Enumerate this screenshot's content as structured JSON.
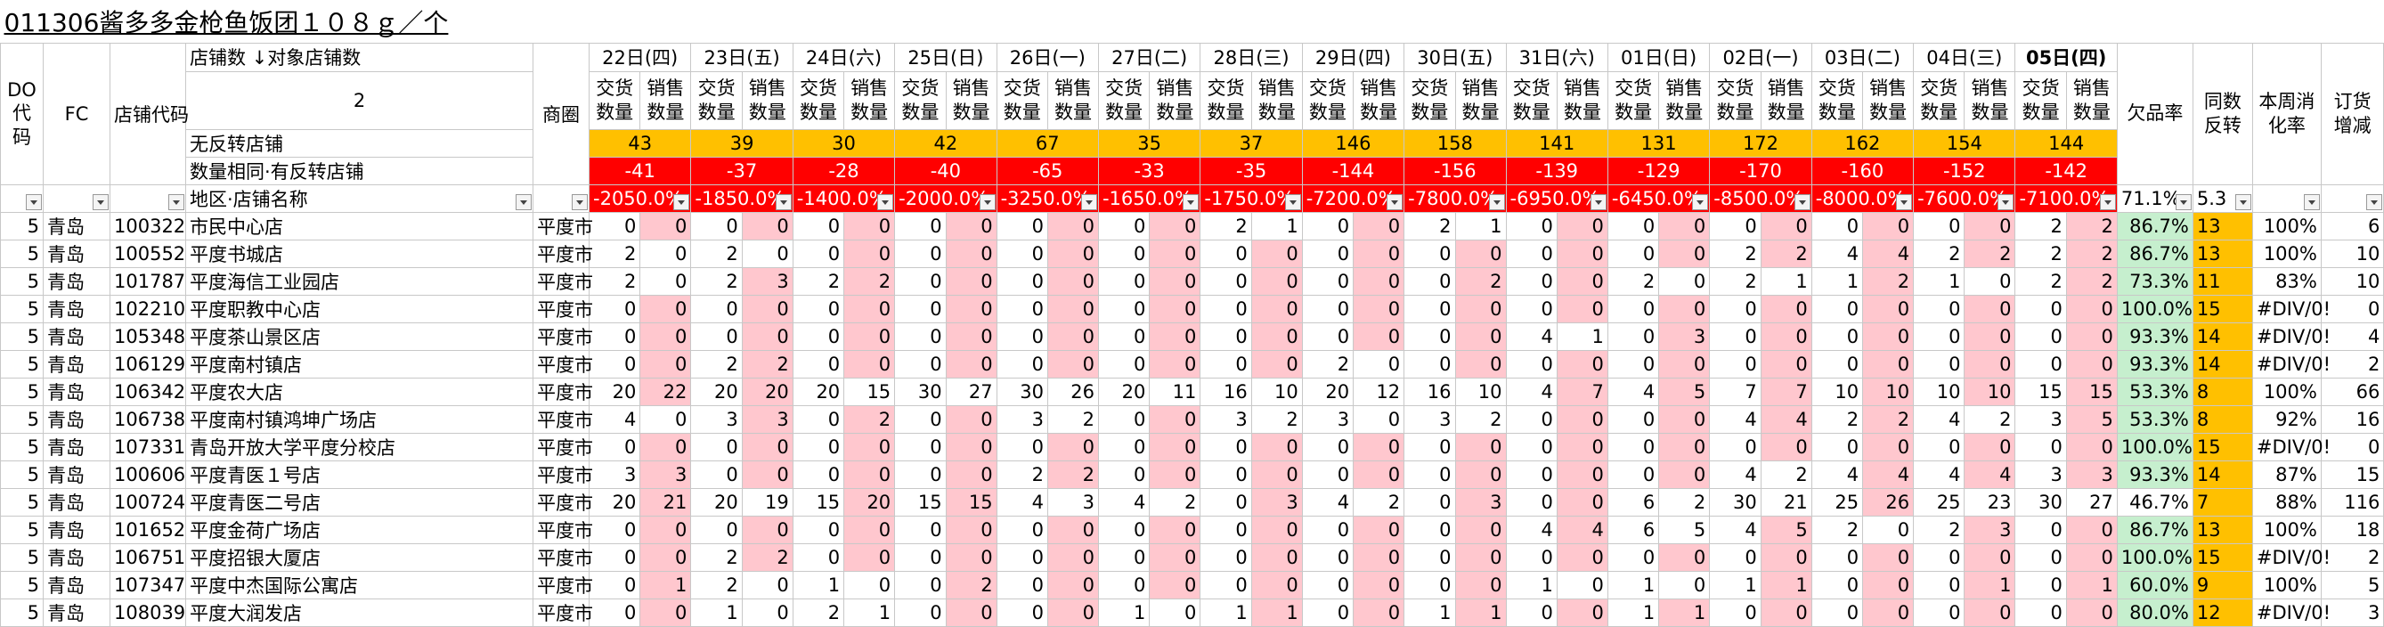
{
  "title": "011306酱多多金枪鱼饭团１０８ｇ／个",
  "columns": {
    "do": "DO代码",
    "fc": "FC",
    "store_code": "店铺代码",
    "store_count": "店铺数 ↓对象店铺数",
    "target_count": 2,
    "district": "商圈",
    "region_name": "地区·店铺名称",
    "delivery": "交货数量",
    "sales": "销售数量",
    "shortage_rate": "欠品率",
    "same_reverse": "同数反转",
    "sell_through": "本周消化率",
    "order_change": "订货增减"
  },
  "dates": [
    "22日(四)",
    "23日(五)",
    "24日(六)",
    "25日(日)",
    "26日(一)",
    "27日(二)",
    "28日(三)",
    "29日(四)",
    "30日(五)",
    "31日(六)",
    "01日(日)",
    "02日(一)",
    "03日(二)",
    "04日(三)",
    "05日(四)"
  ],
  "summary": {
    "no_reverse": {
      "label": "无反转店铺",
      "values": [
        43,
        39,
        30,
        42,
        67,
        35,
        37,
        146,
        158,
        141,
        131,
        172,
        162,
        154,
        144
      ]
    },
    "same_reverse": {
      "label": "数量相同·有反转店铺",
      "values": [
        -41,
        -37,
        -28,
        -40,
        -65,
        -33,
        -35,
        -144,
        -156,
        -139,
        -129,
        -170,
        -160,
        -152,
        -142
      ]
    },
    "rates": {
      "values": [
        "-2050.0%",
        "-1850.0%",
        "-1400.0%",
        "-2000.0%",
        "-3250.0%",
        "-1650.0%",
        "-1750.0%",
        "-7200.0%",
        "-7800.0%",
        "-6950.0%",
        "-6450.0%",
        "-8500.0%",
        "-8000.0%",
        "-7600.0%",
        "-7100.0%"
      ],
      "shortage_rate": "71.1%",
      "same_reverse": 5.3
    }
  },
  "rows": [
    {
      "do": 5,
      "fc": "青岛",
      "code": 100322,
      "name": "市民中心店",
      "district": "平度市",
      "qty": [
        [
          0,
          0
        ],
        [
          0,
          0
        ],
        [
          0,
          0
        ],
        [
          0,
          0
        ],
        [
          0,
          0
        ],
        [
          0,
          0
        ],
        [
          2,
          1
        ],
        [
          0,
          0
        ],
        [
          2,
          1
        ],
        [
          0,
          0
        ],
        [
          0,
          0
        ],
        [
          0,
          0
        ],
        [
          0,
          0
        ],
        [
          0,
          0
        ],
        [
          2,
          2
        ]
      ],
      "shortage_rate": "86.7%",
      "reverse": 13,
      "sell_through": "100%",
      "order_change": 6
    },
    {
      "do": 5,
      "fc": "青岛",
      "code": 100552,
      "name": "平度书城店",
      "district": "平度市",
      "qty": [
        [
          2,
          0
        ],
        [
          2,
          0
        ],
        [
          0,
          0
        ],
        [
          0,
          0
        ],
        [
          0,
          0
        ],
        [
          0,
          0
        ],
        [
          0,
          0
        ],
        [
          0,
          0
        ],
        [
          0,
          0
        ],
        [
          0,
          0
        ],
        [
          0,
          0
        ],
        [
          2,
          2
        ],
        [
          4,
          4
        ],
        [
          2,
          2
        ],
        [
          2,
          2
        ]
      ],
      "shortage_rate": "86.7%",
      "reverse": 13,
      "sell_through": "100%",
      "order_change": 10
    },
    {
      "do": 5,
      "fc": "青岛",
      "code": 101787,
      "name": "平度海信工业园店",
      "district": "平度市",
      "qty": [
        [
          2,
          0
        ],
        [
          2,
          3
        ],
        [
          2,
          2
        ],
        [
          0,
          0
        ],
        [
          0,
          0
        ],
        [
          0,
          0
        ],
        [
          0,
          0
        ],
        [
          0,
          0
        ],
        [
          0,
          2
        ],
        [
          0,
          0
        ],
        [
          2,
          0
        ],
        [
          2,
          1
        ],
        [
          1,
          2
        ],
        [
          1,
          0
        ],
        [
          2,
          2
        ]
      ],
      "shortage_rate": "73.3%",
      "reverse": 11,
      "sell_through": "83%",
      "order_change": 10
    },
    {
      "do": 5,
      "fc": "青岛",
      "code": 102210,
      "name": "平度职教中心店",
      "district": "平度市",
      "qty": [
        [
          0,
          0
        ],
        [
          0,
          0
        ],
        [
          0,
          0
        ],
        [
          0,
          0
        ],
        [
          0,
          0
        ],
        [
          0,
          0
        ],
        [
          0,
          0
        ],
        [
          0,
          0
        ],
        [
          0,
          0
        ],
        [
          0,
          0
        ],
        [
          0,
          0
        ],
        [
          0,
          0
        ],
        [
          0,
          0
        ],
        [
          0,
          0
        ],
        [
          0,
          0
        ]
      ],
      "shortage_rate": "100.0%",
      "reverse": 15,
      "sell_through": "#DIV/0!",
      "order_change": 0
    },
    {
      "do": 5,
      "fc": "青岛",
      "code": 105348,
      "name": "平度茶山景区店",
      "district": "平度市",
      "qty": [
        [
          0,
          0
        ],
        [
          0,
          0
        ],
        [
          0,
          0
        ],
        [
          0,
          0
        ],
        [
          0,
          0
        ],
        [
          0,
          0
        ],
        [
          0,
          0
        ],
        [
          0,
          0
        ],
        [
          0,
          0
        ],
        [
          4,
          1
        ],
        [
          0,
          3
        ],
        [
          0,
          0
        ],
        [
          0,
          0
        ],
        [
          0,
          0
        ],
        [
          0,
          0
        ]
      ],
      "shortage_rate": "93.3%",
      "reverse": 14,
      "sell_through": "#DIV/0!",
      "order_change": 4
    },
    {
      "do": 5,
      "fc": "青岛",
      "code": 106129,
      "name": "平度南村镇店",
      "district": "平度市",
      "qty": [
        [
          0,
          0
        ],
        [
          2,
          2
        ],
        [
          0,
          0
        ],
        [
          0,
          0
        ],
        [
          0,
          0
        ],
        [
          0,
          0
        ],
        [
          0,
          0
        ],
        [
          2,
          0
        ],
        [
          0,
          0
        ],
        [
          0,
          0
        ],
        [
          0,
          0
        ],
        [
          0,
          0
        ],
        [
          0,
          0
        ],
        [
          0,
          0
        ],
        [
          0,
          0
        ]
      ],
      "shortage_rate": "93.3%",
      "reverse": 14,
      "sell_through": "#DIV/0!",
      "order_change": 2
    },
    {
      "do": 5,
      "fc": "青岛",
      "code": 106342,
      "name": "平度农大店",
      "district": "平度市",
      "qty": [
        [
          20,
          22
        ],
        [
          20,
          20
        ],
        [
          20,
          15
        ],
        [
          30,
          27
        ],
        [
          30,
          26
        ],
        [
          20,
          11
        ],
        [
          16,
          10
        ],
        [
          20,
          12
        ],
        [
          16,
          10
        ],
        [
          4,
          7
        ],
        [
          4,
          5
        ],
        [
          7,
          7
        ],
        [
          10,
          10
        ],
        [
          10,
          10
        ],
        [
          15,
          15
        ]
      ],
      "shortage_rate": "53.3%",
      "reverse": 8,
      "sell_through": "100%",
      "order_change": 66
    },
    {
      "do": 5,
      "fc": "青岛",
      "code": 106738,
      "name": "平度南村镇鸿坤广场店",
      "district": "平度市",
      "qty": [
        [
          4,
          0
        ],
        [
          3,
          3
        ],
        [
          0,
          2
        ],
        [
          0,
          0
        ],
        [
          3,
          2
        ],
        [
          0,
          0
        ],
        [
          3,
          2
        ],
        [
          3,
          0
        ],
        [
          3,
          2
        ],
        [
          0,
          0
        ],
        [
          0,
          0
        ],
        [
          4,
          4
        ],
        [
          2,
          2
        ],
        [
          4,
          2
        ],
        [
          3,
          5
        ]
      ],
      "shortage_rate": "53.3%",
      "reverse": 8,
      "sell_through": "92%",
      "order_change": 16
    },
    {
      "do": 5,
      "fc": "青岛",
      "code": 107331,
      "name": "青岛开放大学平度分校店",
      "district": "平度市",
      "qty": [
        [
          0,
          0
        ],
        [
          0,
          0
        ],
        [
          0,
          0
        ],
        [
          0,
          0
        ],
        [
          0,
          0
        ],
        [
          0,
          0
        ],
        [
          0,
          0
        ],
        [
          0,
          0
        ],
        [
          0,
          0
        ],
        [
          0,
          0
        ],
        [
          0,
          0
        ],
        [
          0,
          0
        ],
        [
          0,
          0
        ],
        [
          0,
          0
        ],
        [
          0,
          0
        ]
      ],
      "shortage_rate": "100.0%",
      "reverse": 15,
      "sell_through": "#DIV/0!",
      "order_change": 0
    },
    {
      "do": 5,
      "fc": "青岛",
      "code": 100606,
      "name": "平度青医１号店",
      "district": "平度市",
      "qty": [
        [
          3,
          3
        ],
        [
          0,
          0
        ],
        [
          0,
          0
        ],
        [
          0,
          0
        ],
        [
          2,
          2
        ],
        [
          0,
          0
        ],
        [
          0,
          0
        ],
        [
          0,
          0
        ],
        [
          0,
          0
        ],
        [
          0,
          0
        ],
        [
          0,
          0
        ],
        [
          4,
          2
        ],
        [
          4,
          4
        ],
        [
          4,
          4
        ],
        [
          3,
          3
        ]
      ],
      "shortage_rate": "93.3%",
      "reverse": 14,
      "sell_through": "87%",
      "order_change": 15
    },
    {
      "do": 5,
      "fc": "青岛",
      "code": 100724,
      "name": "平度青医二号店",
      "district": "平度市",
      "qty": [
        [
          20,
          21
        ],
        [
          20,
          19
        ],
        [
          15,
          20
        ],
        [
          15,
          15
        ],
        [
          4,
          3
        ],
        [
          4,
          2
        ],
        [
          0,
          3
        ],
        [
          4,
          2
        ],
        [
          0,
          3
        ],
        [
          0,
          0
        ],
        [
          6,
          2
        ],
        [
          30,
          21
        ],
        [
          25,
          26
        ],
        [
          25,
          23
        ],
        [
          30,
          27
        ]
      ],
      "shortage_rate": "46.7%",
      "reverse": 7,
      "sell_through": "88%",
      "order_change": 116
    },
    {
      "do": 5,
      "fc": "青岛",
      "code": 101652,
      "name": "平度金荷广场店",
      "district": "平度市",
      "qty": [
        [
          0,
          0
        ],
        [
          0,
          0
        ],
        [
          0,
          0
        ],
        [
          0,
          0
        ],
        [
          0,
          0
        ],
        [
          0,
          0
        ],
        [
          0,
          0
        ],
        [
          0,
          0
        ],
        [
          0,
          0
        ],
        [
          4,
          4
        ],
        [
          6,
          5
        ],
        [
          4,
          5
        ],
        [
          2,
          0
        ],
        [
          2,
          3
        ],
        [
          0,
          0
        ]
      ],
      "shortage_rate": "86.7%",
      "reverse": 13,
      "sell_through": "100%",
      "order_change": 18
    },
    {
      "do": 5,
      "fc": "青岛",
      "code": 106751,
      "name": "平度招银大厦店",
      "district": "平度市",
      "qty": [
        [
          0,
          0
        ],
        [
          2,
          2
        ],
        [
          0,
          0
        ],
        [
          0,
          0
        ],
        [
          0,
          0
        ],
        [
          0,
          0
        ],
        [
          0,
          0
        ],
        [
          0,
          0
        ],
        [
          0,
          0
        ],
        [
          0,
          0
        ],
        [
          0,
          0
        ],
        [
          0,
          0
        ],
        [
          0,
          0
        ],
        [
          0,
          0
        ],
        [
          0,
          0
        ]
      ],
      "shortage_rate": "100.0%",
      "reverse": 15,
      "sell_through": "#DIV/0!",
      "order_change": 2
    },
    {
      "do": 5,
      "fc": "青岛",
      "code": 107347,
      "name": "平度中杰国际公寓店",
      "district": "平度市",
      "qty": [
        [
          0,
          1
        ],
        [
          2,
          0
        ],
        [
          1,
          0
        ],
        [
          0,
          2
        ],
        [
          0,
          0
        ],
        [
          0,
          0
        ],
        [
          0,
          0
        ],
        [
          0,
          0
        ],
        [
          0,
          0
        ],
        [
          1,
          0
        ],
        [
          1,
          0
        ],
        [
          1,
          1
        ],
        [
          0,
          0
        ],
        [
          0,
          1
        ],
        [
          0,
          1
        ]
      ],
      "shortage_rate": "60.0%",
      "reverse": 9,
      "sell_through": "100%",
      "order_change": 5
    },
    {
      "do": 5,
      "fc": "青岛",
      "code": 108039,
      "name": "平度大润发店",
      "district": "平度市",
      "qty": [
        [
          0,
          0
        ],
        [
          1,
          0
        ],
        [
          2,
          1
        ],
        [
          0,
          0
        ],
        [
          0,
          0
        ],
        [
          1,
          0
        ],
        [
          1,
          1
        ],
        [
          0,
          0
        ],
        [
          1,
          1
        ],
        [
          0,
          0
        ],
        [
          1,
          1
        ],
        [
          0,
          0
        ],
        [
          0,
          0
        ],
        [
          0,
          0
        ],
        [
          0,
          0
        ]
      ],
      "shortage_rate": "80.0%",
      "reverse": 12,
      "sell_through": "#DIV/0!",
      "order_change": 3
    }
  ]
}
